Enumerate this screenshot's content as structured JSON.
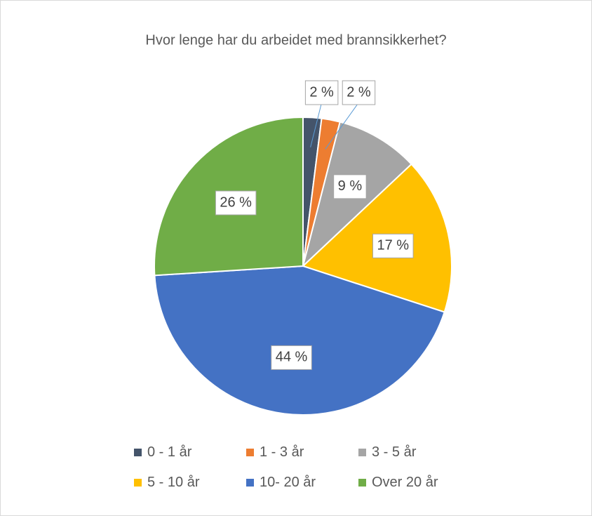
{
  "chart_data": {
    "type": "pie",
    "title": "Hvor lenge har du arbeidet med brannsikkerhet?",
    "categories": [
      "0 - 1 år",
      "1 - 3 år",
      "3 - 5 år",
      "5 - 10 år",
      "10- 20 år",
      "Over 20 år"
    ],
    "values": [
      2,
      2,
      9,
      17,
      44,
      26
    ],
    "value_labels": [
      "2 %",
      "2 %",
      "9 %",
      "17 %",
      "44 %",
      "26 %"
    ],
    "colors": [
      "#44546a",
      "#ed7d31",
      "#a5a5a5",
      "#ffc000",
      "#4472c4",
      "#70ad47"
    ],
    "legend": "bottom"
  }
}
